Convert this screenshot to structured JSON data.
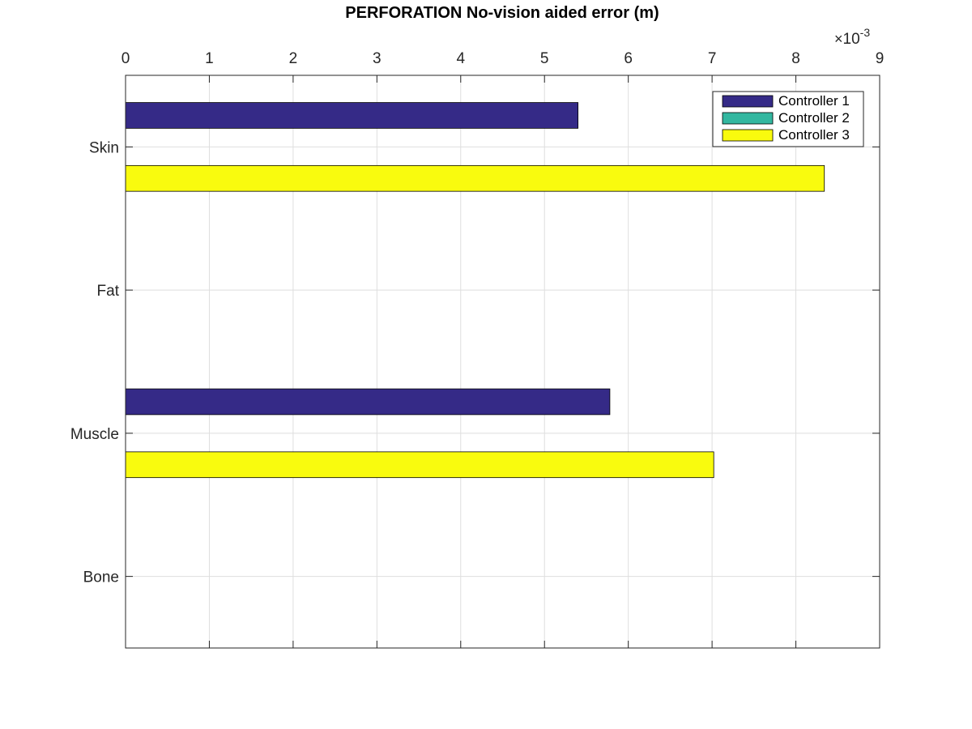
{
  "chart_data": {
    "type": "bar",
    "orientation": "horizontal",
    "title": "PERFORATION No-vision aided error (m)",
    "xlabel": "",
    "ylabel": "",
    "x_axis_position": "top",
    "x_tick_labels": [
      "0",
      "1",
      "2",
      "3",
      "4",
      "5",
      "6",
      "7",
      "8",
      "9"
    ],
    "x_exponent": {
      "base": "10",
      "power": "-3"
    },
    "xlim": [
      0,
      0.009
    ],
    "categories": [
      "Skin",
      "Fat",
      "Muscle",
      "Bone"
    ],
    "series": [
      {
        "name": "Controller 1",
        "color": "#352a87",
        "values": [
          0.0054,
          0,
          0.00578,
          0
        ]
      },
      {
        "name": "Controller 2",
        "color": "#33b7a0",
        "values": [
          0,
          0,
          0,
          0
        ]
      },
      {
        "name": "Controller 3",
        "color": "#f9fb0e",
        "values": [
          0.00834,
          0,
          0.00702,
          0
        ]
      }
    ],
    "grid": true,
    "legend_position": "top-right"
  }
}
